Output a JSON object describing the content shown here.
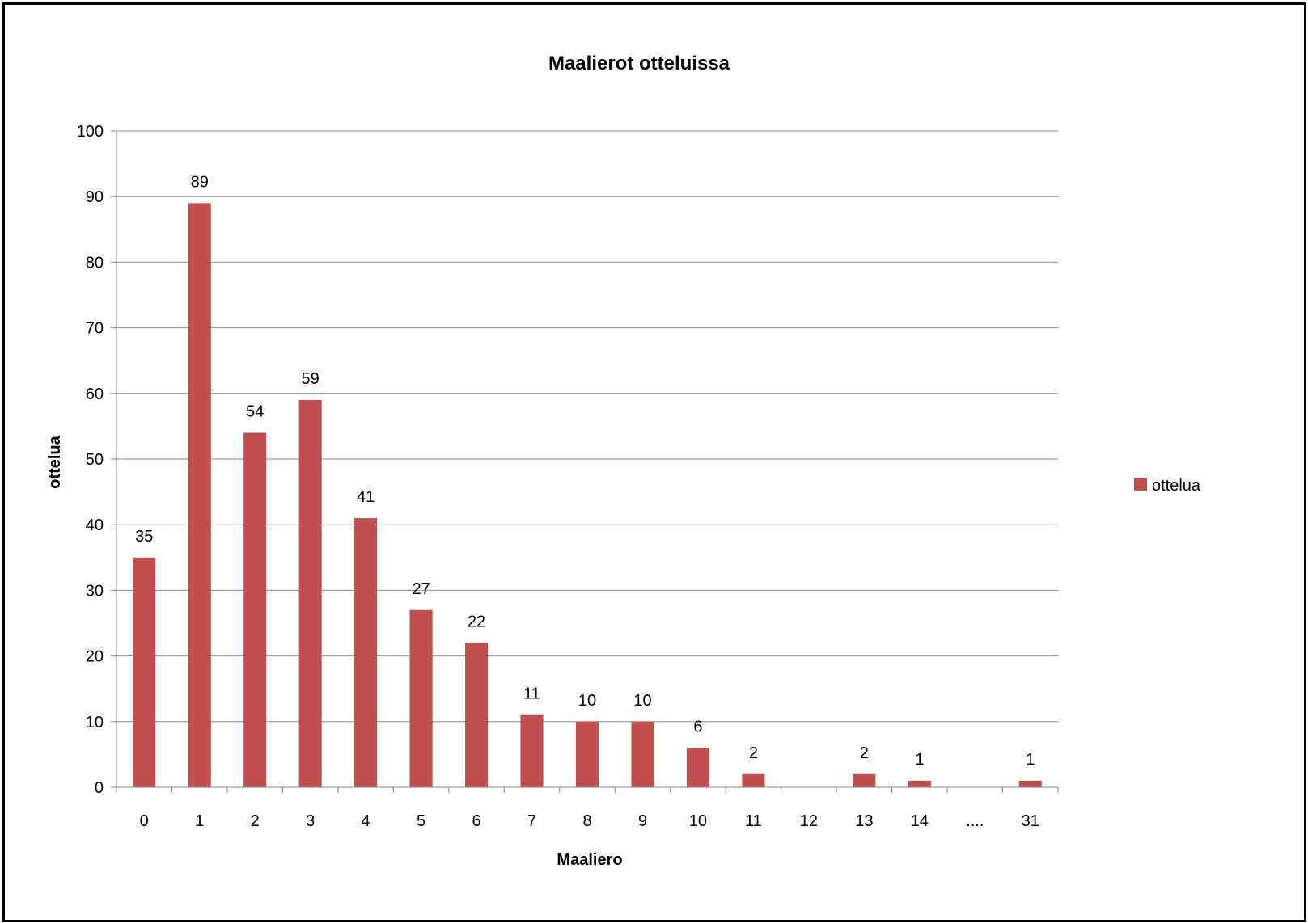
{
  "chart_data": {
    "type": "bar",
    "title": "Maalierot otteluissa",
    "xlabel": "Maaliero",
    "ylabel": "ottelua",
    "categories": [
      "0",
      "1",
      "2",
      "3",
      "4",
      "5",
      "6",
      "7",
      "8",
      "9",
      "10",
      "11",
      "12",
      "13",
      "14",
      "....",
      "31"
    ],
    "series": [
      {
        "name": "ottelua",
        "color": "#C0504D",
        "values": [
          35,
          89,
          54,
          59,
          41,
          27,
          22,
          11,
          10,
          10,
          6,
          2,
          null,
          2,
          1,
          null,
          1
        ],
        "data_labels": [
          "35",
          "89",
          "54",
          "59",
          "41",
          "27",
          "22",
          "11",
          "10",
          "10",
          "6",
          "2",
          "",
          "2",
          "1",
          "",
          "1"
        ]
      }
    ],
    "ylim": [
      0,
      100
    ],
    "yticks": [
      0,
      10,
      20,
      30,
      40,
      50,
      60,
      70,
      80,
      90,
      100
    ],
    "grid": true,
    "legend_position": "right",
    "gridline_color": "#8C8C8C",
    "axis_color": "#868686"
  }
}
